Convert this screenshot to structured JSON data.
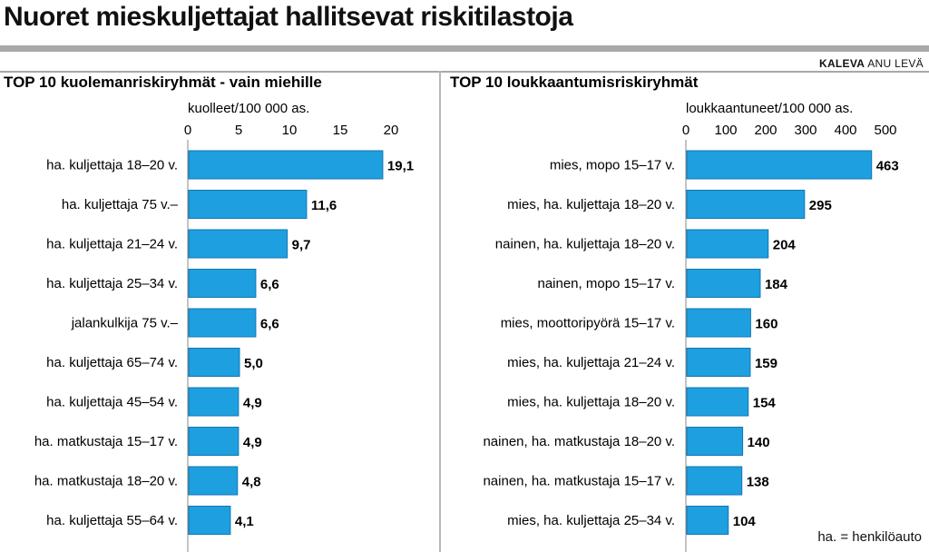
{
  "header": {
    "title": "Nuoret mieskuljettajat hallitsevat riskitilastoja",
    "credit_brand": "KALEVA",
    "credit_author": "ANU LEVÄ"
  },
  "footnote": "ha. = henkilöauto",
  "colors": {
    "bar": "#1e9fe0",
    "bar_stroke": "#1477b0",
    "rule": "#a8a8a8",
    "axis": "#888888"
  },
  "chart_data": [
    {
      "type": "bar",
      "orientation": "horizontal",
      "title": "TOP 10 kuolemanriskiryhmät - vain miehille",
      "xlabel": "kuolleet/100 000 as.",
      "xlim": [
        0,
        20
      ],
      "ticks": [
        0,
        5,
        10,
        15,
        20
      ],
      "tick_labels": [
        "0",
        "5",
        "10",
        "15",
        "20"
      ],
      "categories": [
        "ha. kuljettaja 18–20 v.",
        "ha. kuljettaja 75 v.–",
        "ha. kuljettaja 21–24 v.",
        "ha. kuljettaja 25–34 v.",
        "jalankulkija 75 v.–",
        "ha. kuljettaja 65–74 v.",
        "ha. kuljettaja 45–54 v.",
        "ha. matkustaja 15–17 v.",
        "ha. matkustaja 18–20 v.",
        "ha. kuljettaja 55–64 v."
      ],
      "values": [
        19.1,
        11.6,
        9.7,
        6.6,
        6.6,
        5.0,
        4.9,
        4.9,
        4.8,
        4.1
      ],
      "value_labels": [
        "19,1",
        "11,6",
        "9,7",
        "6,6",
        "6,6",
        "5,0",
        "4,9",
        "4,9",
        "4,8",
        "4,1"
      ],
      "grid": false,
      "legend": "none"
    },
    {
      "type": "bar",
      "orientation": "horizontal",
      "title": "TOP 10 loukkaantumisriskiryhmät",
      "xlabel": "loukkaantuneet/100 000 as.",
      "xlim": [
        0,
        500
      ],
      "ticks": [
        0,
        100,
        200,
        300,
        400,
        500
      ],
      "tick_labels": [
        "0",
        "100",
        "200",
        "300",
        "400",
        "500"
      ],
      "categories": [
        "mies, mopo 15–17 v.",
        "mies, ha. kuljettaja 18–20 v.",
        "nainen, ha. kuljettaja 18–20 v.",
        "nainen, mopo 15–17 v.",
        "mies, moottoripyörä 15–17 v.",
        "mies, ha. kuljettaja 21–24 v.",
        "mies, ha. kuljettaja 18–20 v.",
        "nainen, ha. matkustaja 18–20 v.",
        "nainen, ha. matkustaja 15–17 v.",
        "mies, ha. kuljettaja 25–34 v."
      ],
      "values": [
        463,
        295,
        204,
        184,
        160,
        159,
        154,
        140,
        138,
        104
      ],
      "value_labels": [
        "463",
        "295",
        "204",
        "184",
        "160",
        "159",
        "154",
        "140",
        "138",
        "104"
      ],
      "grid": false,
      "legend": "none"
    }
  ]
}
